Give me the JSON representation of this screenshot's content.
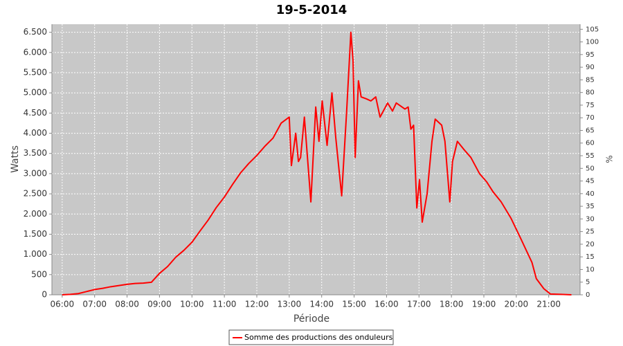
{
  "chart_data": {
    "type": "line",
    "title": "19-5-2014",
    "x_label": "Période",
    "y_label": "Watts",
    "y2_label": "%",
    "x": [
      "06:00",
      "06:15",
      "06:30",
      "06:45",
      "07:00",
      "07:15",
      "07:30",
      "07:45",
      "08:00",
      "08:15",
      "08:30",
      "08:45",
      "09:00",
      "09:15",
      "09:30",
      "09:45",
      "10:00",
      "10:15",
      "10:30",
      "10:45",
      "11:00",
      "11:15",
      "11:30",
      "11:45",
      "12:00",
      "12:15",
      "12:30",
      "12:45",
      "13:00",
      "13:04",
      "13:12",
      "13:17",
      "13:21",
      "13:28",
      "13:40",
      "13:49",
      "13:55",
      "14:01",
      "14:10",
      "14:19",
      "14:26",
      "14:37",
      "14:46",
      "14:54",
      "14:58",
      "15:02",
      "15:08",
      "15:13",
      "15:23",
      "15:31",
      "15:40",
      "15:48",
      "16:02",
      "16:11",
      "16:18",
      "16:34",
      "16:40",
      "16:45",
      "16:50",
      "16:56",
      "17:01",
      "17:06",
      "17:15",
      "17:24",
      "17:30",
      "17:42",
      "17:48",
      "17:57",
      "18:02",
      "18:11",
      "18:23",
      "18:36",
      "18:52",
      "19:05",
      "19:17",
      "19:32",
      "19:50",
      "20:08",
      "20:29",
      "20:37",
      "20:51",
      "21:03",
      "21:23",
      "21:42"
    ],
    "series": [
      {
        "name": "Somme des productions des onduleurs",
        "color": "#ff0000",
        "values": [
          0,
          10,
          30,
          80,
          130,
          160,
          200,
          230,
          260,
          280,
          290,
          310,
          530,
          700,
          930,
          1100,
          1300,
          1580,
          1850,
          2160,
          2420,
          2730,
          3020,
          3250,
          3450,
          3680,
          3880,
          4250,
          4400,
          3200,
          4000,
          3300,
          3400,
          4400,
          2300,
          4650,
          3800,
          4800,
          3700,
          5000,
          3900,
          2450,
          4500,
          6500,
          5800,
          3400,
          5300,
          4900,
          4850,
          4800,
          4900,
          4400,
          4750,
          4550,
          4750,
          4600,
          4650,
          4100,
          4200,
          2150,
          2850,
          1800,
          2500,
          3800,
          4350,
          4200,
          3800,
          2300,
          3300,
          3800,
          3600,
          3400,
          3000,
          2800,
          2550,
          2300,
          1900,
          1400,
          800,
          400,
          150,
          20,
          10,
          0
        ]
      }
    ],
    "xlim": [
      "05:41",
      "21:58"
    ],
    "xticks": [
      "06:00",
      "07:00",
      "08:00",
      "09:00",
      "10:00",
      "11:00",
      "12:00",
      "13:00",
      "14:00",
      "15:00",
      "16:00",
      "17:00",
      "18:00",
      "19:00",
      "20:00",
      "21:00"
    ],
    "ylim": [
      0,
      6700
    ],
    "yticks": [
      0,
      500,
      {
        "value": 1000,
        "label": "1.000"
      },
      {
        "value": 1500,
        "label": "1.500"
      },
      {
        "value": 2000,
        "label": "2.000"
      },
      {
        "value": 2500,
        "label": "2.500"
      },
      {
        "value": 3000,
        "label": "3.000"
      },
      {
        "value": 3500,
        "label": "3.500"
      },
      {
        "value": 4000,
        "label": "4.000"
      },
      {
        "value": 4500,
        "label": "4.500"
      },
      {
        "value": 5000,
        "label": "5.000"
      },
      {
        "value": 5500,
        "label": "5.500"
      },
      {
        "value": 6000,
        "label": "6.000"
      },
      {
        "value": 6500,
        "label": "6.500"
      }
    ],
    "y2lim": [
      0,
      107
    ],
    "y2ticks": [
      0,
      5,
      10,
      15,
      20,
      25,
      30,
      35,
      40,
      45,
      50,
      55,
      60,
      65,
      70,
      75,
      80,
      85,
      90,
      95,
      100,
      105
    ],
    "grid": true
  }
}
